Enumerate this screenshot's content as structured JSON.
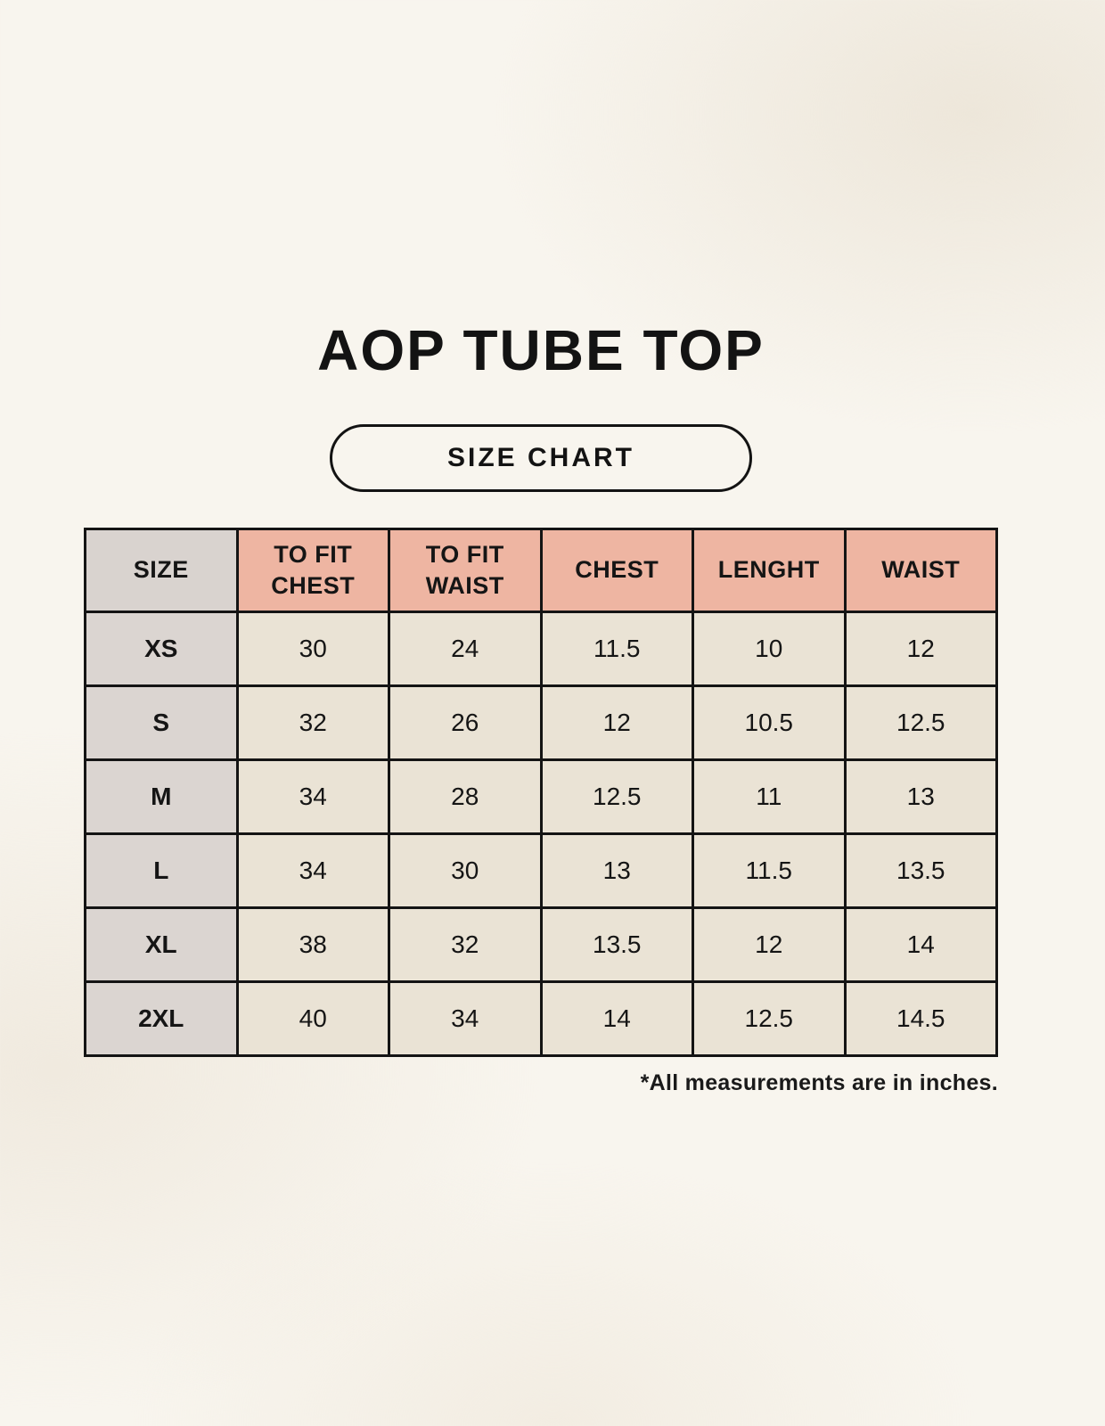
{
  "page": {
    "title": "AOP TUBE TOP",
    "size_chart_badge": "SIZE CHART",
    "footnote": "*All measurements are in inches."
  },
  "colors": {
    "background_cream": "#f8f5ee",
    "header_pink": "#eeb5a2",
    "header_gray": "#d9d3cf",
    "row_label_gray": "#dbd5d1",
    "data_cell_cream": "#eae3d5",
    "grid_border": "#141414",
    "text": "#141414"
  },
  "chart_data": {
    "type": "table",
    "title": "AOP TUBE TOP",
    "columns": [
      "SIZE",
      "TO FIT CHEST",
      "TO FIT WAIST",
      "CHEST",
      "LENGHT",
      "WAIST"
    ],
    "rows": [
      [
        "XS",
        "30",
        "24",
        "11.5",
        "10",
        "12"
      ],
      [
        "S",
        "32",
        "26",
        "12",
        "10.5",
        "12.5"
      ],
      [
        "M",
        "34",
        "28",
        "12.5",
        "11",
        "13"
      ],
      [
        "L",
        "34",
        "30",
        "13",
        "11.5",
        "13.5"
      ],
      [
        "XL",
        "38",
        "32",
        "13.5",
        "12",
        "14"
      ],
      [
        "2XL",
        "40",
        "34",
        "14",
        "12.5",
        "14.5"
      ]
    ],
    "note": "*All measurements are in inches."
  }
}
